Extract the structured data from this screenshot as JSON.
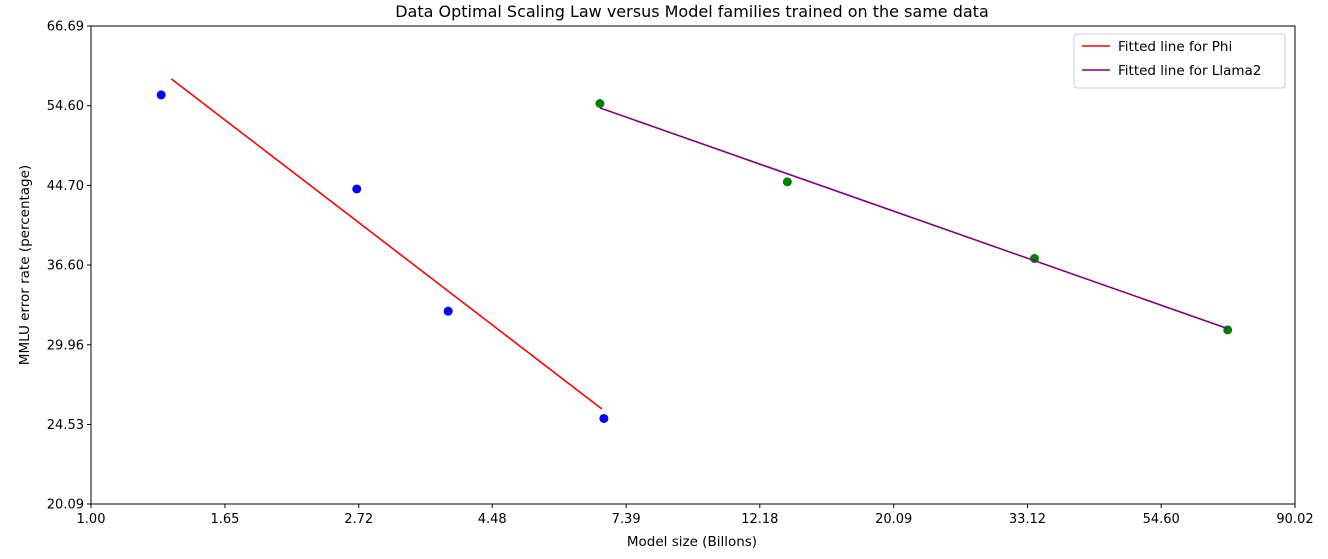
{
  "chart_data": {
    "type": "scatter",
    "title": "Data Optimal Scaling Law versus Model families trained on the same data",
    "xlabel": "Model size (Billons)",
    "ylabel": "MMLU error rate (percentage)",
    "x_scale": "log",
    "y_scale": "log",
    "xlim": [
      1.0,
      90.02
    ],
    "ylim": [
      20.09,
      66.69
    ],
    "x_ticks": [
      "1.00",
      "1.65",
      "2.72",
      "4.48",
      "7.39",
      "12.18",
      "20.09",
      "33.12",
      "54.60",
      "90.02"
    ],
    "y_ticks": [
      "20.09",
      "24.53",
      "29.96",
      "36.60",
      "44.70",
      "54.60",
      "66.69"
    ],
    "grid": false,
    "legend_position": "top-right",
    "series": [
      {
        "color": "#0000ff",
        "kind": "points",
        "points": [
          [
            1.3,
            56.1
          ],
          [
            2.7,
            44.3
          ],
          [
            3.8,
            32.6
          ],
          [
            6.8,
            24.9
          ]
        ]
      },
      {
        "color": "#008000",
        "kind": "points",
        "points": [
          [
            6.7,
            54.9
          ],
          [
            13.5,
            45.1
          ],
          [
            34.0,
            37.2
          ],
          [
            70.0,
            31.1
          ]
        ]
      },
      {
        "name": "Fitted line for Phi",
        "color": "#ff0000",
        "kind": "line",
        "points": [
          [
            1.35,
            58.4
          ],
          [
            6.75,
            25.5
          ]
        ]
      },
      {
        "name": "Fitted line for Llama2",
        "color": "#800080",
        "kind": "line",
        "points": [
          [
            6.7,
            54.3
          ],
          [
            70.0,
            31.2
          ]
        ]
      }
    ]
  }
}
